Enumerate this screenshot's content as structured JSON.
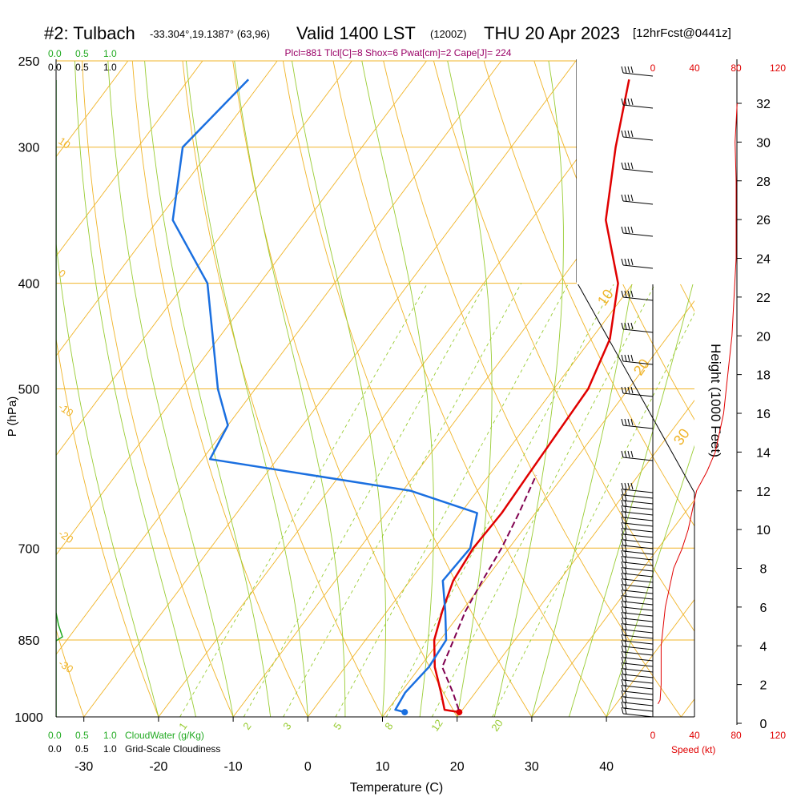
{
  "header": {
    "title": "#2: Tulbach",
    "coords": "-33.304°,19.1387° (63,96)",
    "valid": "Valid 1400 LST",
    "zulu": "(1200Z)",
    "date": "THU 20 Apr 2023",
    "forecast": "[12hrFcst@0441z]",
    "indices": "Plcl=881 Tlcl[C]=8 Shox=6 Pwat[cm]=2 Cape[J]= 224"
  },
  "colors": {
    "isotherm": "#f0b428",
    "dry_adiabat": "#99cc33",
    "moist_adiabat": "#99cc33",
    "mixing_ratio": "#99cc33",
    "temperature": "#e00000",
    "dewpoint": "#1a6fe0",
    "parcel": "#800050",
    "cloud": "#22aa22",
    "wind_speed": "#e00000",
    "indices_text": "#990066"
  },
  "chart_data": {
    "type": "line",
    "title": "Skew-T",
    "xlabel": "Temperature (C)",
    "ylabel": "P (hPa)",
    "xlim": [
      -35,
      45
    ],
    "ylim": [
      1000,
      250
    ],
    "y_scale": "log",
    "x_ticks": [
      "-30",
      "-20",
      "-10",
      "0",
      "10",
      "20",
      "30",
      "40"
    ],
    "p_ticks": [
      "250",
      "300",
      "400",
      "500",
      "700",
      "850",
      "1000"
    ],
    "series": [
      {
        "key": "temperature",
        "values": [
          [
            19.8,
            990
          ],
          [
            17.6,
            985
          ],
          [
            15.4,
            950
          ],
          [
            12,
            900
          ],
          [
            9.2,
            850
          ],
          [
            7.4,
            800
          ],
          [
            5.8,
            750
          ],
          [
            5.2,
            700
          ],
          [
            5.5,
            650
          ],
          [
            5.2,
            600
          ],
          [
            4.6,
            500
          ],
          [
            2.5,
            450
          ],
          [
            -2,
            400
          ],
          [
            -10,
            350
          ],
          [
            -16,
            300
          ],
          [
            -21,
            260
          ]
        ]
      },
      {
        "key": "dewpoint",
        "values": [
          [
            12.5,
            990
          ],
          [
            11,
            985
          ],
          [
            10.6,
            950
          ],
          [
            11.2,
            900
          ],
          [
            10.8,
            850
          ],
          [
            7.8,
            800
          ],
          [
            4.4,
            750
          ],
          [
            4.8,
            700
          ],
          [
            2.2,
            650
          ],
          [
            -9,
            620
          ],
          [
            -39,
            580
          ],
          [
            -40,
            540
          ],
          [
            -45,
            500
          ],
          [
            -57,
            400
          ],
          [
            -68,
            350
          ],
          [
            -74,
            300
          ],
          [
            -72,
            260
          ]
        ]
      },
      {
        "key": "parcel",
        "values": [
          [
            19.5,
            985
          ],
          [
            17,
            950
          ],
          [
            13,
            900
          ],
          [
            11.8,
            850
          ],
          [
            10.5,
            800
          ],
          [
            9.7,
            750
          ],
          [
            9,
            700
          ],
          [
            7.8,
            650
          ],
          [
            6.3,
            600
          ]
        ]
      }
    ],
    "isotherm_labels": [
      "-10",
      "0",
      "10",
      "20",
      "30"
    ],
    "dry_adiabat_labels": [
      "10",
      "0",
      "-10",
      "-20",
      "-30"
    ],
    "mixing_ratio_labels": [
      "1",
      "2",
      "3",
      "5",
      "8",
      "12",
      "20"
    ],
    "height_axis": {
      "label": "Height (1000 Feet)",
      "ticks": [
        "0",
        "2",
        "4",
        "6",
        "8",
        "10",
        "12",
        "14",
        "16",
        "18",
        "20",
        "22",
        "24",
        "26",
        "28",
        "30",
        "32"
      ]
    },
    "wind_speed_axis": {
      "label": "Speed (kt)",
      "ticks": [
        "0",
        "40",
        "80",
        "120"
      ],
      "speeds": [
        [
          1,
          5
        ],
        [
          1.2,
          7
        ],
        [
          2,
          8
        ],
        [
          3,
          8
        ],
        [
          4,
          8
        ],
        [
          5,
          10
        ],
        [
          6,
          12
        ],
        [
          7,
          16
        ],
        [
          8,
          20
        ],
        [
          9,
          28
        ],
        [
          10,
          34
        ],
        [
          11,
          38
        ],
        [
          12,
          42
        ],
        [
          13,
          52
        ],
        [
          14,
          60
        ],
        [
          16,
          68
        ],
        [
          18,
          72
        ],
        [
          20,
          76
        ],
        [
          24,
          80
        ],
        [
          28,
          80
        ],
        [
          30,
          79
        ],
        [
          32,
          81
        ]
      ]
    },
    "cloud_axis": {
      "ticks": [
        "0.0",
        "0.5",
        "1.0"
      ],
      "label": "CloudWater (g/Kg)",
      "cloudiness_label": "Grid-Scale Cloudiness"
    }
  }
}
